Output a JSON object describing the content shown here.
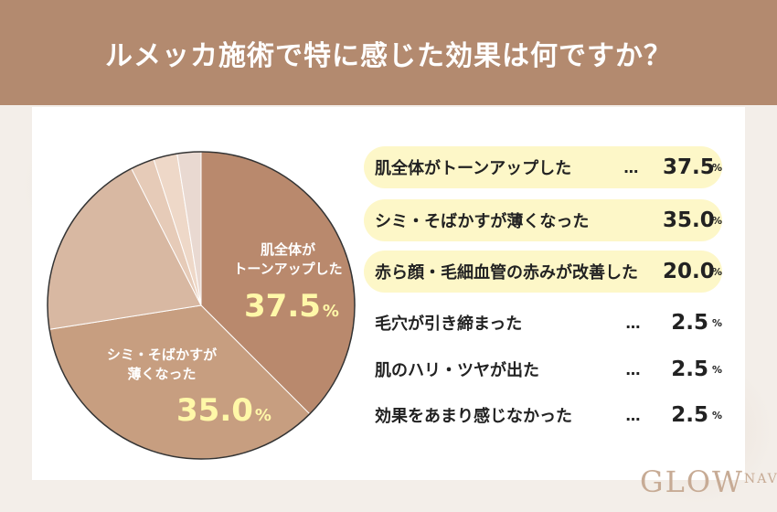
{
  "header": {
    "title": "ルメッカ施術で特に感じた効果は何ですか？"
  },
  "chart_data": {
    "type": "pie",
    "title": "ルメッカ施術で特に感じた効果は何ですか？",
    "unit": "%",
    "categories": [
      "肌全体がトーンアップした",
      "シミ・そばかすが薄くなった",
      "赤ら顔・毛細血管の赤みが改善した",
      "毛穴が引き締まった",
      "肌のハリ・ツヤが出た",
      "効果をあまり感じなかった"
    ],
    "values": [
      37.5,
      35.0,
      20.0,
      2.5,
      2.5,
      2.5
    ],
    "colors": [
      "#b9896d",
      "#c79e80",
      "#d8b8a2",
      "#e6cbb8",
      "#eed8c8",
      "#e9d9d1"
    ],
    "slice_labels": [
      {
        "lines": [
          "肌全体が",
          "トーンアップした"
        ],
        "pct": "37.5",
        "unit": "%"
      },
      {
        "lines": [
          "シミ・そばかすが",
          "薄くなった"
        ],
        "pct": "35.0",
        "unit": "%"
      }
    ]
  },
  "legend": [
    {
      "label": "肌全体がトーンアップした",
      "dots": "…",
      "value": "37.5",
      "unit": "%",
      "highlight": true
    },
    {
      "label": "シミ・そばかすが薄くなった",
      "dots": "",
      "value": "35.0",
      "unit": "%",
      "highlight": true
    },
    {
      "label": "赤ら顔・毛細血管の赤みが改善した",
      "dots": "",
      "value": "20.0",
      "unit": "%",
      "highlight": true
    },
    {
      "label": "毛穴が引き締まった",
      "dots": "…",
      "value": "2.5",
      "unit": "%",
      "highlight": false
    },
    {
      "label": "肌のハリ・ツヤが出た",
      "dots": "…",
      "value": "2.5",
      "unit": "%",
      "highlight": false
    },
    {
      "label": "効果をあまり感じなかった",
      "dots": "…",
      "value": "2.5",
      "unit": "%",
      "highlight": false
    }
  ],
  "logo": {
    "main": "GLOW",
    "sub": "NAVI"
  }
}
